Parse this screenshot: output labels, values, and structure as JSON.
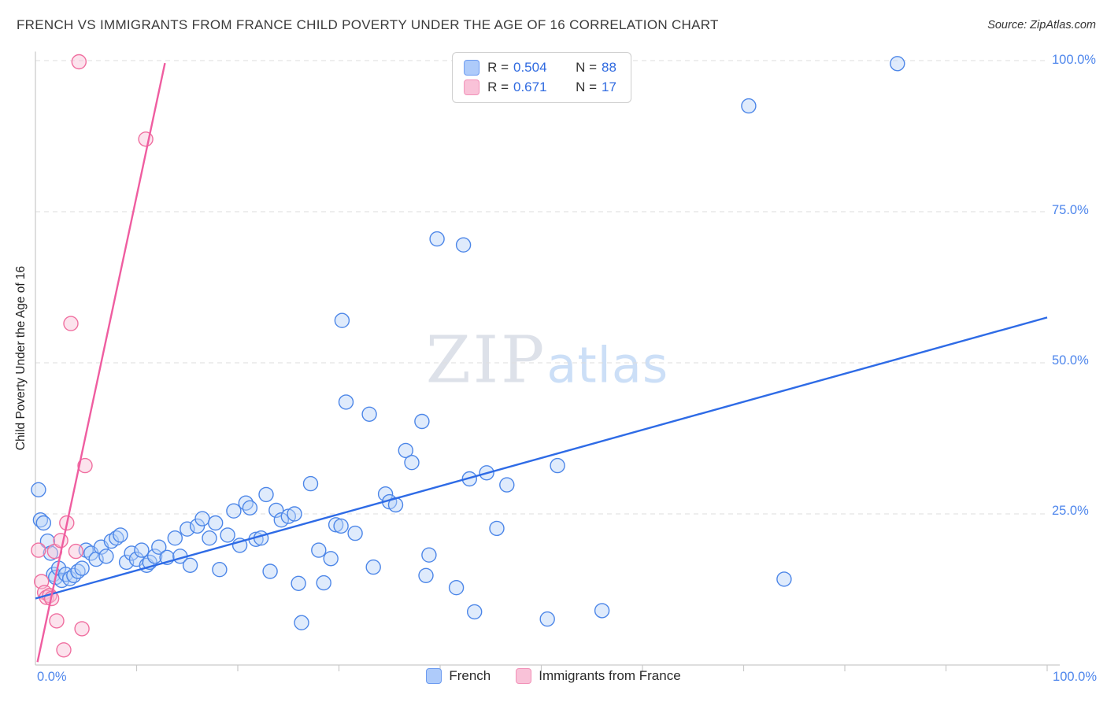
{
  "header": {
    "title": "FRENCH VS IMMIGRANTS FROM FRANCE CHILD POVERTY UNDER THE AGE OF 16 CORRELATION CHART",
    "source": "Source: ZipAtlas.com"
  },
  "watermark": {
    "zip": "ZIP",
    "atlas": "atlas"
  },
  "axes": {
    "y_label": "Child Poverty Under the Age of 16",
    "x_min_label": "0.0%",
    "x_max_label": "100.0%",
    "y_tick_labels": [
      "100.0%",
      "75.0%",
      "50.0%",
      "25.0%"
    ]
  },
  "legend_box": {
    "series": [
      {
        "r_label": "R =",
        "r_value": "0.504",
        "n_label": "N =",
        "n_value": "88",
        "fill": "#aecbfa",
        "stroke": "#6b9af0"
      },
      {
        "r_label": "R =",
        "r_value": "0.671",
        "n_label": "N =",
        "n_value": "17",
        "fill": "#f9c2d8",
        "stroke": "#f291b8"
      }
    ]
  },
  "bottom_legend": {
    "items": [
      {
        "label": "French",
        "fill": "#aecbfa",
        "stroke": "#6b9af0"
      },
      {
        "label": "Immigrants from France",
        "fill": "#f9c2d8",
        "stroke": "#f291b8"
      }
    ]
  },
  "chart_data": {
    "type": "scatter",
    "title": "FRENCH VS IMMIGRANTS FROM FRANCE CHILD POVERTY UNDER THE AGE OF 16 CORRELATION CHART",
    "xlabel": "",
    "ylabel": "Child Poverty Under the Age of 16",
    "xlim": [
      0,
      100
    ],
    "ylim": [
      0,
      100
    ],
    "y_ticks": [
      25,
      50,
      75,
      100
    ],
    "grid_color": "#dedede",
    "axis_color": "#c9c9c9",
    "legend_position": "bottom-center",
    "series": [
      {
        "id": "french",
        "name": "French",
        "r": 0.504,
        "n": 88,
        "color": "#4c86e8",
        "fill": "#b8d2f8",
        "trend_color": "#2e6be6",
        "trend": {
          "x1": 0,
          "y1": 11,
          "x2": 100,
          "y2": 57.5
        },
        "points": [
          [
            0.3,
            29
          ],
          [
            0.5,
            24
          ],
          [
            0.8,
            23.5
          ],
          [
            1.2,
            20.5
          ],
          [
            1.5,
            18.5
          ],
          [
            1.8,
            15
          ],
          [
            2.0,
            14.5
          ],
          [
            2.3,
            16
          ],
          [
            2.6,
            14
          ],
          [
            3.0,
            15
          ],
          [
            3.4,
            14.3
          ],
          [
            3.8,
            14.8
          ],
          [
            4.2,
            15.5
          ],
          [
            4.6,
            16
          ],
          [
            5.0,
            19
          ],
          [
            5.5,
            18.5
          ],
          [
            6.0,
            17.5
          ],
          [
            6.5,
            19.5
          ],
          [
            7.0,
            18
          ],
          [
            7.5,
            20.5
          ],
          [
            8.0,
            21
          ],
          [
            8.4,
            21.5
          ],
          [
            9.0,
            17
          ],
          [
            9.5,
            18.5
          ],
          [
            10.0,
            17.5
          ],
          [
            10.5,
            19
          ],
          [
            11.0,
            16.5
          ],
          [
            11.3,
            17
          ],
          [
            11.8,
            18
          ],
          [
            12.2,
            19.5
          ],
          [
            13.0,
            17.8
          ],
          [
            13.8,
            21
          ],
          [
            14.3,
            18
          ],
          [
            15.0,
            22.5
          ],
          [
            15.3,
            16.5
          ],
          [
            16.0,
            23
          ],
          [
            16.5,
            24.2
          ],
          [
            17.2,
            21
          ],
          [
            17.8,
            23.5
          ],
          [
            18.2,
            15.8
          ],
          [
            19.0,
            21.5
          ],
          [
            19.6,
            25.5
          ],
          [
            20.2,
            19.8
          ],
          [
            20.8,
            26.8
          ],
          [
            21.2,
            26
          ],
          [
            21.8,
            20.8
          ],
          [
            22.3,
            21
          ],
          [
            22.8,
            28.2
          ],
          [
            23.2,
            15.5
          ],
          [
            23.8,
            25.6
          ],
          [
            24.3,
            24
          ],
          [
            25.0,
            24.6
          ],
          [
            25.6,
            25
          ],
          [
            26.0,
            13.5
          ],
          [
            26.3,
            7
          ],
          [
            27.2,
            30
          ],
          [
            28.0,
            19
          ],
          [
            28.5,
            13.6
          ],
          [
            29.2,
            17.6
          ],
          [
            29.7,
            23.2
          ],
          [
            30.2,
            23
          ],
          [
            30.3,
            57
          ],
          [
            30.7,
            43.5
          ],
          [
            31.6,
            21.8
          ],
          [
            33.0,
            41.5
          ],
          [
            33.4,
            16.2
          ],
          [
            34.6,
            28.3
          ],
          [
            35.0,
            27
          ],
          [
            35.6,
            26.5
          ],
          [
            36.6,
            35.5
          ],
          [
            37.2,
            33.5
          ],
          [
            38.2,
            40.3
          ],
          [
            38.6,
            14.8
          ],
          [
            38.9,
            18.2
          ],
          [
            39.7,
            70.5
          ],
          [
            41.6,
            12.8
          ],
          [
            42.3,
            69.5
          ],
          [
            42.9,
            30.8
          ],
          [
            43.4,
            8.8
          ],
          [
            44.6,
            31.8
          ],
          [
            45.6,
            22.6
          ],
          [
            46.6,
            29.8
          ],
          [
            50.6,
            7.6
          ],
          [
            51.6,
            33
          ],
          [
            56.0,
            9.0
          ],
          [
            70.5,
            92.5
          ],
          [
            74.0,
            14.2
          ],
          [
            85.2,
            99.5
          ]
        ]
      },
      {
        "id": "immigrants",
        "name": "Immigrants from France",
        "r": 0.671,
        "n": 17,
        "color": "#f06fa0",
        "fill": "#f9c2d8",
        "trend_color": "#ef5da0",
        "trend": {
          "x1": 0.2,
          "y1": 0.5,
          "x2": 12.8,
          "y2": 99.6
        },
        "points": [
          [
            0.3,
            19
          ],
          [
            0.6,
            13.8
          ],
          [
            0.9,
            12
          ],
          [
            1.1,
            11.2
          ],
          [
            1.4,
            11.5
          ],
          [
            1.6,
            11
          ],
          [
            1.9,
            18.8
          ],
          [
            2.1,
            7.3
          ],
          [
            2.5,
            20.6
          ],
          [
            2.8,
            2.5
          ],
          [
            3.1,
            23.5
          ],
          [
            3.5,
            56.5
          ],
          [
            4.0,
            18.8
          ],
          [
            4.3,
            99.8
          ],
          [
            4.6,
            6
          ],
          [
            4.9,
            33
          ],
          [
            10.9,
            87
          ]
        ]
      }
    ]
  }
}
